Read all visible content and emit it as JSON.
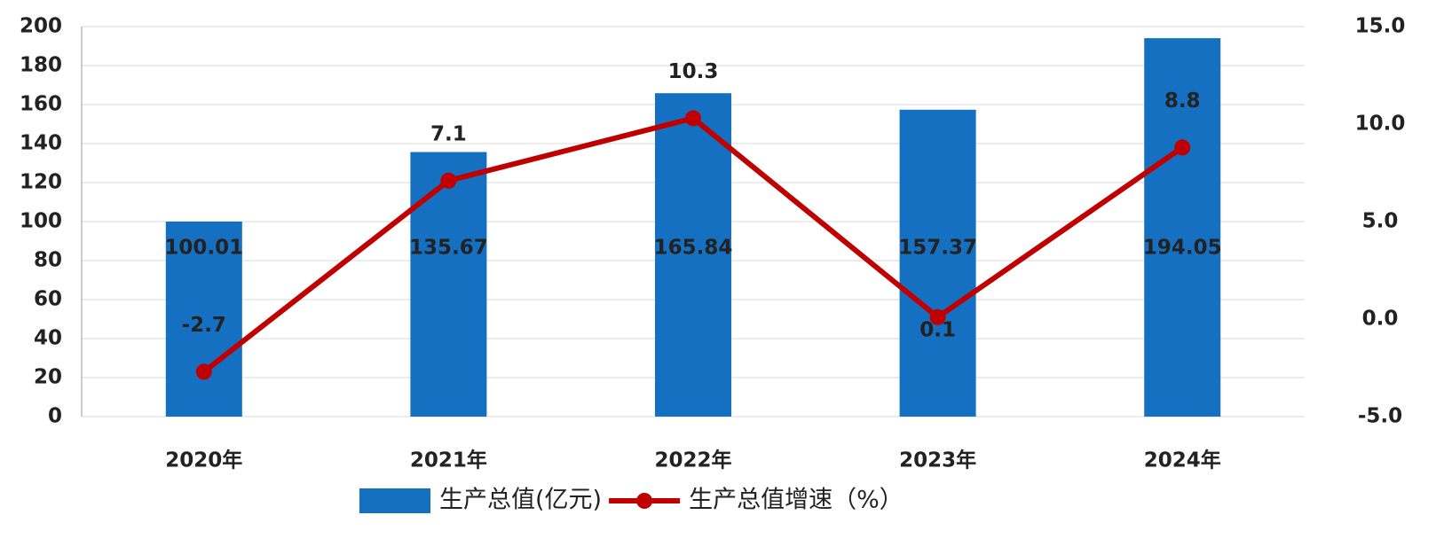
{
  "chart_data": {
    "type": "bar",
    "categories": [
      "2020年",
      "2021年",
      "2022年",
      "2023年",
      "2024年"
    ],
    "series": [
      {
        "name": "生产总值(亿元)",
        "type": "bar",
        "color": "#1570c2",
        "values": [
          100.01,
          135.67,
          165.84,
          157.37,
          194.05
        ]
      },
      {
        "name": "生产总值增速（%）",
        "type": "line",
        "axis": "y2",
        "color": "#c00000",
        "values": [
          -2.7,
          7.1,
          10.3,
          0.1,
          8.8
        ]
      }
    ],
    "ylim": [
      0,
      200
    ],
    "yticks": [
      0,
      20,
      40,
      60,
      80,
      100,
      120,
      140,
      160,
      180,
      200
    ],
    "y2lim": [
      -5,
      15
    ],
    "y2ticks": [
      {
        "value": -5,
        "label": "-5.0"
      },
      {
        "value": 0,
        "label": "0.0"
      },
      {
        "value": 5,
        "label": "5.0"
      },
      {
        "value": 10,
        "label": "10.0"
      },
      {
        "value": 15,
        "label": "15.0"
      }
    ],
    "grid": true,
    "legend": "bottom"
  }
}
